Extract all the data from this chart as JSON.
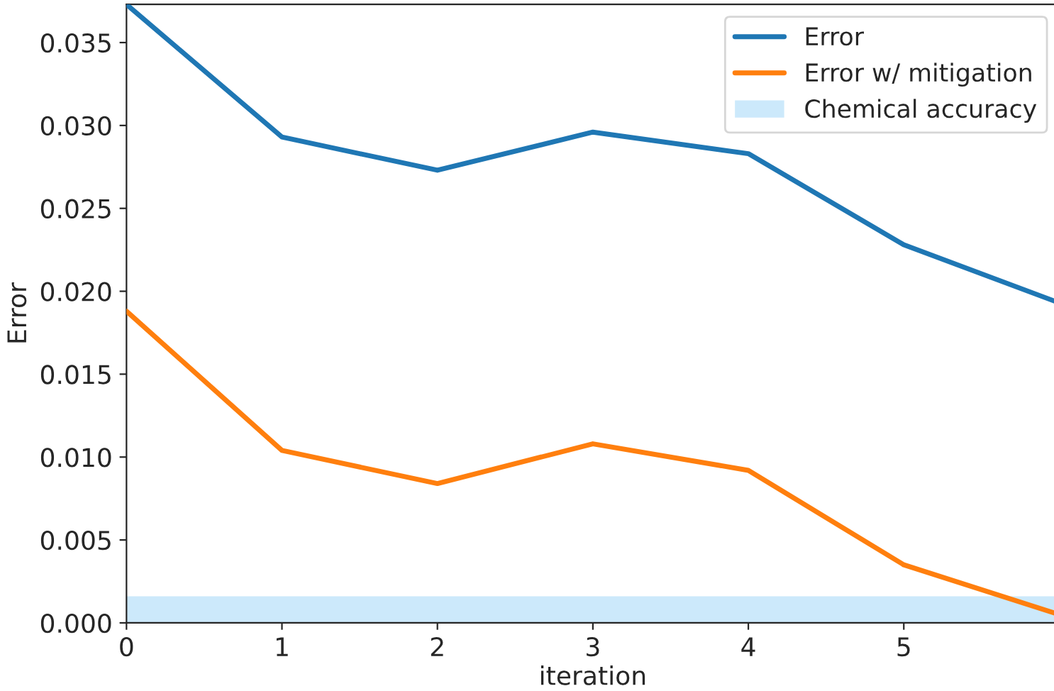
{
  "chart_data": {
    "type": "line",
    "xlabel": "iteration",
    "ylabel": "Error",
    "x": [
      0,
      1,
      2,
      3,
      4,
      5,
      6
    ],
    "series": [
      {
        "name": "Error",
        "color": "#1f77b4",
        "values": [
          0.0373,
          0.0293,
          0.0273,
          0.0296,
          0.0283,
          0.0228,
          0.0193
        ]
      },
      {
        "name": "Error w/ mitigation",
        "color": "#ff7f0e",
        "values": [
          0.0188,
          0.0104,
          0.0084,
          0.0108,
          0.0092,
          0.0035,
          0.0005
        ]
      }
    ],
    "bands": [
      {
        "axis": "y",
        "from": 0,
        "to": 0.0016,
        "label": "Chemical accuracy",
        "color": "#cce9fb"
      }
    ],
    "xlim": [
      0,
      6
    ],
    "xticks": [
      0,
      1,
      2,
      3,
      4,
      5
    ],
    "ylim": [
      0,
      0.0373
    ],
    "yticks": [
      {
        "value": 0,
        "label": "0.000"
      },
      0.005,
      {
        "value": 0.01,
        "label": "0.010"
      },
      0.015,
      {
        "value": 0.02,
        "label": "0.020"
      },
      0.025,
      {
        "value": 0.03,
        "label": "0.030"
      },
      0.035
    ],
    "grid": false,
    "legend": "top right",
    "line_style": "solid",
    "marker": "none"
  }
}
